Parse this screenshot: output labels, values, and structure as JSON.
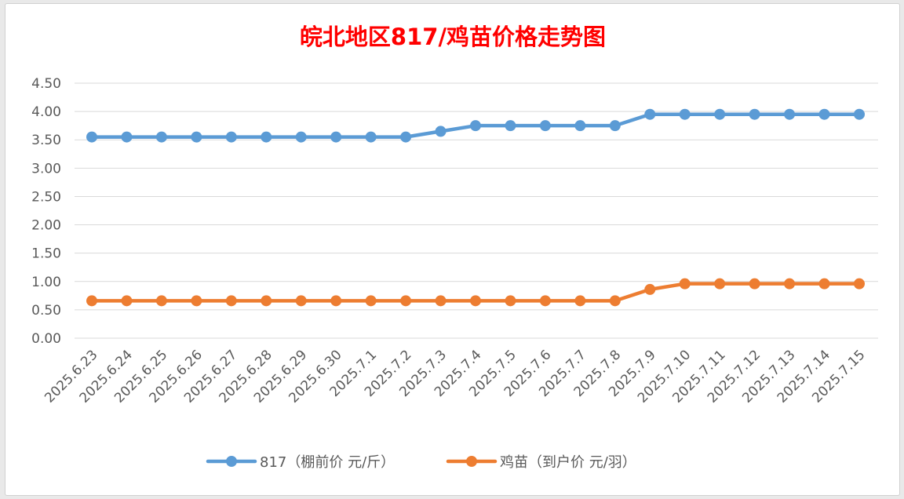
{
  "chart_data": {
    "type": "line",
    "title": "皖北地区817/鸡苗价格走势图",
    "xlabel": "",
    "ylabel": "",
    "ylim": [
      0,
      4.5
    ],
    "yticks": [
      "0.00",
      "0.50",
      "1.00",
      "1.50",
      "2.00",
      "2.50",
      "3.00",
      "3.50",
      "4.00",
      "4.50"
    ],
    "grid": true,
    "legend_position": "bottom",
    "categories": [
      "2025.6.23",
      "2025.6.24",
      "2025.6.25",
      "2025.6.26",
      "2025.6.27",
      "2025.6.28",
      "2025.6.29",
      "2025.6.30",
      "2025.7.1",
      "2025.7.2",
      "2025.7.3",
      "2025.7.4",
      "2025.7.5",
      "2025.7.6",
      "2025.7.7",
      "2025.7.8",
      "2025.7.9",
      "2025.7.10",
      "2025.7.11",
      "2025.7.12",
      "2025.7.13",
      "2025.7.14",
      "2025.7.15"
    ],
    "series": [
      {
        "name": "817（棚前价 元/斤）",
        "color": "#5b9bd5",
        "values": [
          3.55,
          3.55,
          3.55,
          3.55,
          3.55,
          3.55,
          3.55,
          3.55,
          3.55,
          3.55,
          3.65,
          3.75,
          3.75,
          3.75,
          3.75,
          3.75,
          3.95,
          3.95,
          3.95,
          3.95,
          3.95,
          3.95,
          3.95
        ]
      },
      {
        "name": "鸡苗（到户价 元/羽）",
        "color": "#ed7d31",
        "values": [
          0.66,
          0.66,
          0.66,
          0.66,
          0.66,
          0.66,
          0.66,
          0.66,
          0.66,
          0.66,
          0.66,
          0.66,
          0.66,
          0.66,
          0.66,
          0.66,
          0.86,
          0.96,
          0.96,
          0.96,
          0.96,
          0.96,
          0.96
        ]
      }
    ]
  }
}
